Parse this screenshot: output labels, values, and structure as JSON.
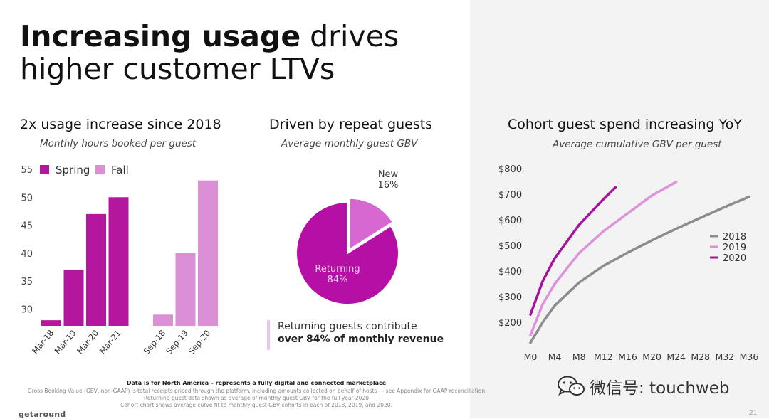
{
  "title": {
    "bold": "Increasing usage",
    "rest_line1": " drives",
    "line2": "higher customer LTVs"
  },
  "chart_data": [
    {
      "type": "bar",
      "title": "2x usage increase since 2018",
      "subtitle": "Monthly hours booked per guest",
      "legend": [
        "Spring",
        "Fall"
      ],
      "legend_position": "top-left",
      "y_ticks": [
        "55",
        "50",
        "45",
        "40",
        "35",
        "30"
      ],
      "ylim": [
        27,
        55
      ],
      "grid": false,
      "colors": {
        "Spring": "#b3179e",
        "Fall": "#db8fd5"
      },
      "series": [
        {
          "name": "Spring",
          "categories": [
            "Mar-18",
            "Mar-19",
            "Mar-20",
            "Mar-21"
          ],
          "values": [
            28,
            37,
            47,
            50
          ]
        },
        {
          "name": "Fall",
          "categories": [
            "Sep-18",
            "Sep-19",
            "Sep-20"
          ],
          "values": [
            29,
            40,
            53
          ]
        }
      ]
    },
    {
      "type": "pie",
      "title": "Driven by repeat guests",
      "subtitle": "Average monthly guest GBV",
      "slices": [
        {
          "label": "Returning",
          "pct_label": "84%",
          "value": 84,
          "color": "#b50fa5"
        },
        {
          "label": "New",
          "pct_label": "16%",
          "value": 16,
          "color": "#d868d1"
        }
      ]
    },
    {
      "type": "line",
      "title": "Cohort guest spend increasing YoY",
      "subtitle": "Average cumulative GBV per guest",
      "x_ticks": [
        "M0",
        "M4",
        "M8",
        "M12",
        "M16",
        "M20",
        "M24",
        "M28",
        "M32",
        "M36"
      ],
      "xlim": [
        0,
        36
      ],
      "y_ticks": [
        "$800",
        "$700",
        "$600",
        "$500",
        "$400",
        "$300",
        "$200"
      ],
      "ylim": [
        100,
        800
      ],
      "legend_position": "right",
      "grid": false,
      "series": [
        {
          "name": "2018",
          "color": "#8c8c8c",
          "x": [
            0,
            2,
            4,
            8,
            12,
            16,
            20,
            24,
            28,
            32,
            36
          ],
          "y": [
            120,
            200,
            265,
            355,
            420,
            472,
            520,
            565,
            608,
            650,
            690
          ]
        },
        {
          "name": "2019",
          "color": "#de92da",
          "x": [
            0,
            2,
            4,
            8,
            12,
            16,
            20,
            24
          ],
          "y": [
            150,
            270,
            350,
            470,
            555,
            625,
            695,
            748
          ]
        },
        {
          "name": "2020",
          "color": "#a3139c",
          "x": [
            0,
            2,
            4,
            8,
            12,
            14
          ],
          "y": [
            230,
            360,
            450,
            580,
            680,
            727
          ]
        }
      ]
    }
  ],
  "callout": {
    "line1": "Returning guests contribute",
    "line2": "over 84% of monthly revenue"
  },
  "footnotes": [
    "Data is for North America – represents a fully digital and connected marketplace",
    "Gross Booking Value (GBV, non-GAAP) is total receipts priced through the platform, including amounts collected on behalf of hosts — see Appendix for GAAP reconciliation",
    "Returning guest data shown as average of monthly guest GBV for the full year 2020",
    "Cohort chart shows average curve fit to monthly guest GBV cohorts in each of 2018, 2019, and 2020."
  ],
  "logo": "getaround",
  "watermark": {
    "text": "微信号: touchweb",
    "icon": "wechat-icon"
  },
  "page_number": "| 21"
}
